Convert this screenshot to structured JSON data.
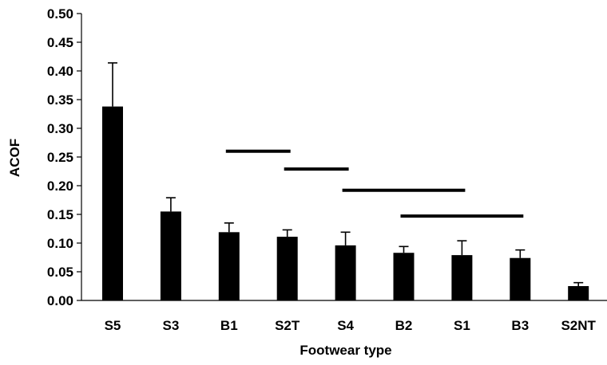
{
  "chart_data": {
    "type": "bar",
    "title": "",
    "xlabel": "Footwear type",
    "ylabel": "ACOF",
    "ylim": [
      0,
      0.5
    ],
    "yticks": [
      "0.00",
      "0.05",
      "0.10",
      "0.15",
      "0.20",
      "0.25",
      "0.30",
      "0.35",
      "0.40",
      "0.45",
      "0.50"
    ],
    "categories": [
      "S5",
      "S3",
      "B1",
      "S2T",
      "S4",
      "B2",
      "S1",
      "B3",
      "S2NT"
    ],
    "values": [
      0.338,
      0.155,
      0.119,
      0.111,
      0.096,
      0.083,
      0.079,
      0.074,
      0.025
    ],
    "error_plus": [
      0.076,
      0.024,
      0.016,
      0.012,
      0.023,
      0.011,
      0.025,
      0.014,
      0.006
    ],
    "bar_color": "#000000",
    "grid": false,
    "legend": "none",
    "significance_lines": [
      {
        "from": "B1",
        "to": "S2T",
        "y": 0.26
      },
      {
        "from": "S2T",
        "to": "S4",
        "y": 0.229
      },
      {
        "from": "S4",
        "to": "S1",
        "y": 0.192
      },
      {
        "from": "B2",
        "to": "B3",
        "y": 0.147
      }
    ]
  }
}
